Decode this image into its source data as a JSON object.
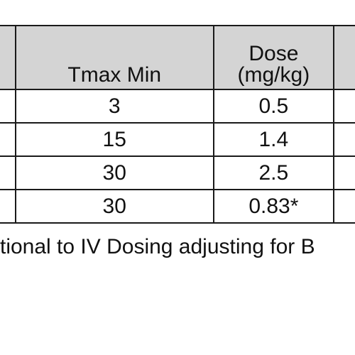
{
  "table": {
    "headers": {
      "tmax": "Tmax Min",
      "dose_line1": "Dose",
      "dose_line2": "(mg/kg)"
    },
    "rows": [
      {
        "tmax": "3",
        "dose": "0.5"
      },
      {
        "tmax": "15",
        "dose": "1.4"
      },
      {
        "tmax": "30",
        "dose": "2.5"
      },
      {
        "tmax": "30",
        "dose": "0.83*"
      }
    ]
  },
  "footnote": "tional to IV Dosing adjusting for B"
}
